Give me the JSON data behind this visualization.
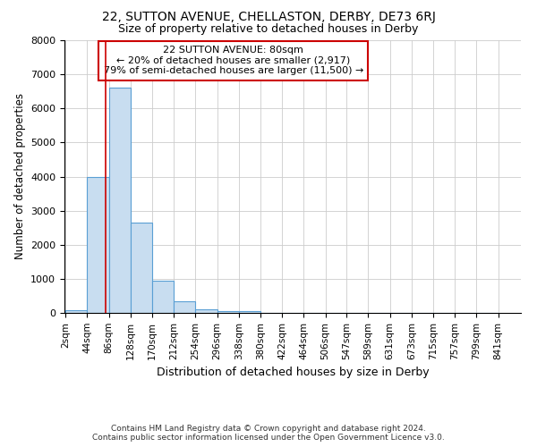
{
  "title1": "22, SUTTON AVENUE, CHELLASTON, DERBY, DE73 6RJ",
  "title2": "Size of property relative to detached houses in Derby",
  "xlabel": "Distribution of detached houses by size in Derby",
  "ylabel": "Number of detached properties",
  "bins": [
    2,
    44,
    86,
    128,
    170,
    212,
    254,
    296,
    338,
    380,
    422,
    464,
    506,
    547,
    589,
    631,
    673,
    715,
    757,
    799,
    841
  ],
  "counts": [
    80,
    4000,
    6600,
    2650,
    950,
    330,
    100,
    60,
    50,
    0,
    0,
    0,
    0,
    0,
    0,
    0,
    0,
    0,
    0,
    0
  ],
  "bar_color": "#c8ddf0",
  "bar_edge_color": "#5a9fd4",
  "property_line_x": 80,
  "property_line_color": "#cc0000",
  "ylim": [
    0,
    8000
  ],
  "yticks": [
    0,
    1000,
    2000,
    3000,
    4000,
    5000,
    6000,
    7000,
    8000
  ],
  "annotation_title": "22 SUTTON AVENUE: 80sqm",
  "annotation_line1": "← 20% of detached houses are smaller (2,917)",
  "annotation_line2": "79% of semi-detached houses are larger (11,500) →",
  "annotation_box_color": "#cc0000",
  "footer1": "Contains HM Land Registry data © Crown copyright and database right 2024.",
  "footer2": "Contains public sector information licensed under the Open Government Licence v3.0.",
  "bg_color": "#ffffff",
  "grid_color": "#cccccc",
  "title1_fontsize": 10,
  "title2_fontsize": 9,
  "xlabel_fontsize": 9,
  "ylabel_fontsize": 8.5,
  "tick_fontsize": 7.5,
  "ytick_fontsize": 8
}
